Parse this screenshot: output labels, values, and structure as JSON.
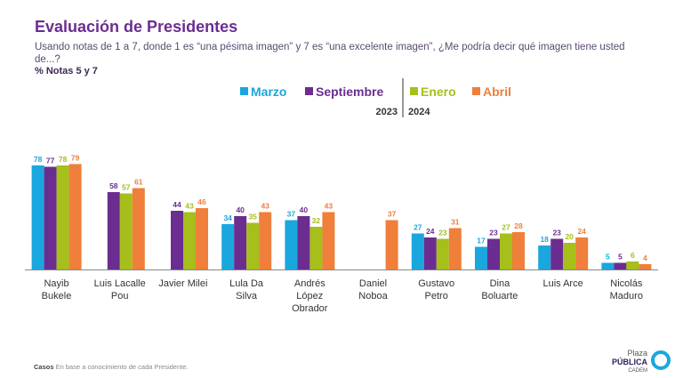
{
  "chart_data": {
    "type": "bar",
    "title": "Evaluación de Presidentes",
    "subtitle": "Usando notas de 1 a 7, donde 1 es “una pésima imagen” y 7 es “una excelente imagen”, ¿Me podría decir qué imagen tiene usted de...?",
    "measure": "% Notas 5 y 7",
    "legend_years": [
      "2023",
      "2024"
    ],
    "categories": [
      "Nayib\nBukele",
      "Luis Lacalle\nPou",
      "Javier Milei",
      "Lula Da\nSilva",
      "Andrés\nLópez\nObrador",
      "Daniel\nNoboa",
      "Gustavo\nPetro",
      "Dina\nBoluarte",
      "Luis Arce",
      "Nicolás\nMaduro"
    ],
    "series": [
      {
        "name": "Marzo",
        "color": "#1aa7de",
        "values": [
          78,
          null,
          null,
          34,
          37,
          null,
          27,
          17,
          18,
          5
        ]
      },
      {
        "name": "Septiembre",
        "color": "#6b2d90",
        "values": [
          77,
          58,
          44,
          40,
          40,
          null,
          24,
          23,
          23,
          5
        ]
      },
      {
        "name": "Enero",
        "color": "#a6bf1a",
        "values": [
          78,
          57,
          43,
          35,
          32,
          null,
          23,
          27,
          20,
          6
        ]
      },
      {
        "name": "Abril",
        "color": "#ef7f3a",
        "values": [
          79,
          61,
          46,
          43,
          43,
          37,
          31,
          28,
          24,
          4
        ]
      }
    ],
    "footnote": {
      "label": "Casos",
      "text": "En base a conocimiento de cada Presidente."
    },
    "logo": [
      "Plaza",
      "PÚBLICA",
      "CADEM"
    ]
  }
}
